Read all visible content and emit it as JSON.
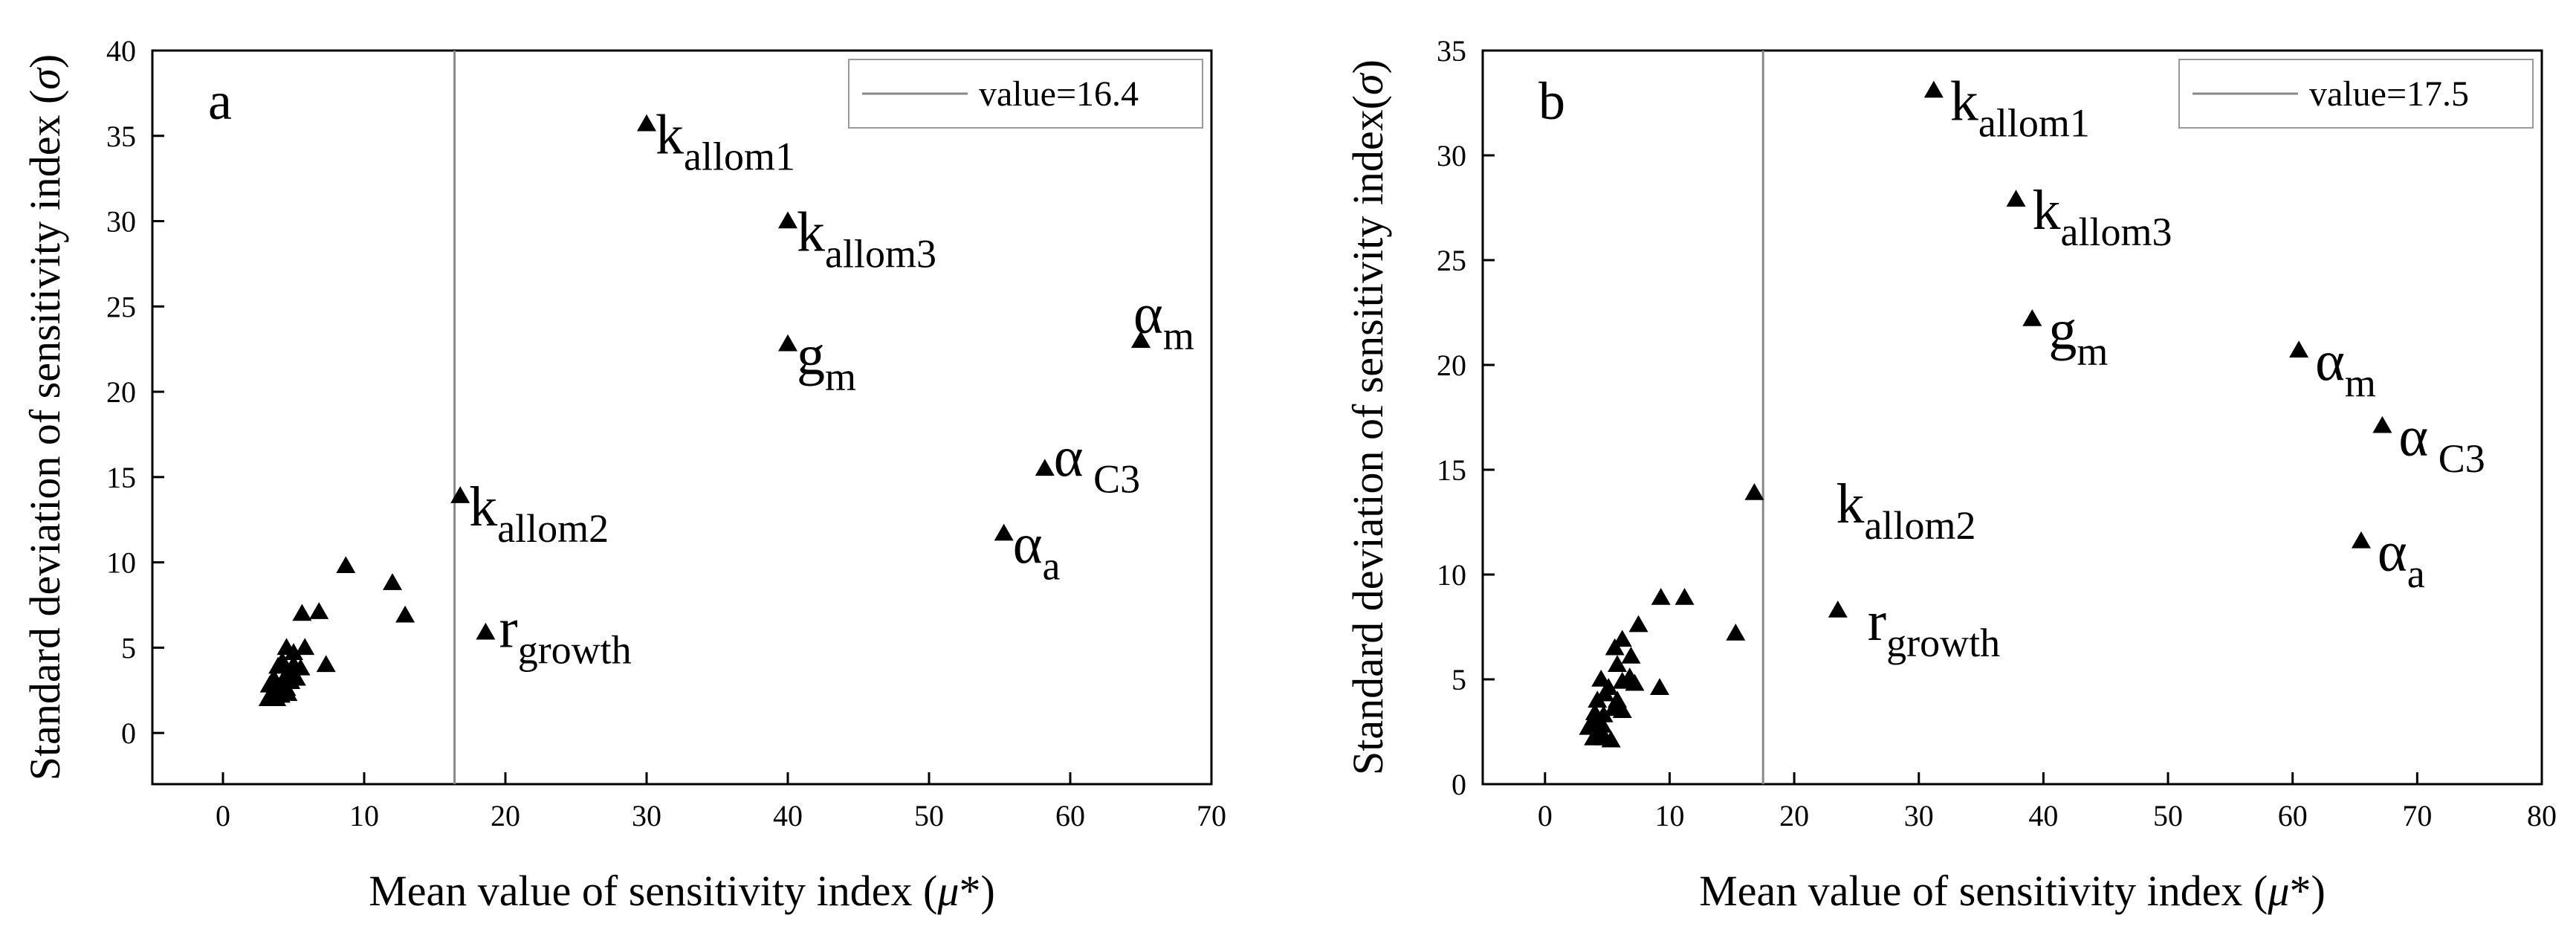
{
  "chart_data": [
    {
      "type": "scatter",
      "panel": "a",
      "xlabel": "Mean value of sensitivity index (μ*)",
      "ylabel": "Standard deviation of sensitivity index (σ)",
      "xlim": [
        -5,
        70
      ],
      "ylim": [
        -3,
        40
      ],
      "xticks": [
        "0",
        "10",
        "20",
        "30",
        "40",
        "50",
        "60",
        "70"
      ],
      "yticks": [
        "0",
        "5",
        "10",
        "15",
        "20",
        "25",
        "30",
        "35",
        "40"
      ],
      "threshold": {
        "value": 16.4,
        "legend": "value=16.4"
      },
      "labeled_points": [
        {
          "x": 30.0,
          "y": 35.7,
          "base": "k",
          "sub": "allom1"
        },
        {
          "x": 40.0,
          "y": 30.0,
          "base": "k",
          "sub": "allom3"
        },
        {
          "x": 40.0,
          "y": 22.8,
          "base": "g",
          "sub": "m"
        },
        {
          "x": 65.0,
          "y": 23.0,
          "base": "α",
          "sub": "m"
        },
        {
          "x": 58.2,
          "y": 15.5,
          "base": "α",
          "sub": " C3"
        },
        {
          "x": 55.3,
          "y": 11.7,
          "base": "α",
          "sub": "a"
        },
        {
          "x": 16.8,
          "y": 13.9,
          "base": "k",
          "sub": "allom2"
        },
        {
          "x": 18.6,
          "y": 5.9,
          "base": "r",
          "sub": "growth"
        }
      ],
      "points": [
        [
          8.7,
          9.8
        ],
        [
          12.0,
          8.8
        ],
        [
          12.9,
          6.9
        ],
        [
          5.6,
          7.0
        ],
        [
          6.8,
          7.1
        ],
        [
          7.3,
          4.0
        ],
        [
          4.5,
          5.0
        ],
        [
          5.0,
          4.7
        ],
        [
          5.8,
          5.0
        ],
        [
          4.2,
          4.2
        ],
        [
          5.0,
          4.0
        ],
        [
          5.5,
          3.8
        ],
        [
          3.9,
          3.9
        ],
        [
          4.6,
          3.5
        ],
        [
          5.2,
          3.2
        ],
        [
          3.6,
          3.2
        ],
        [
          4.2,
          3.0
        ],
        [
          4.8,
          3.0
        ],
        [
          3.3,
          2.8
        ],
        [
          3.9,
          2.6
        ],
        [
          4.5,
          2.6
        ],
        [
          3.5,
          2.2
        ],
        [
          4.1,
          2.2
        ],
        [
          3.2,
          2.0
        ],
        [
          3.8,
          2.0
        ],
        [
          4.6,
          2.3
        ]
      ]
    },
    {
      "type": "scatter",
      "panel": "b",
      "xlabel": "Mean value of sensitivity index (μ*)",
      "ylabel": "Standard deviation of  sensitivity index(σ)",
      "xlim": [
        -5,
        80
      ],
      "ylim": [
        0,
        35
      ],
      "xticks": [
        "0",
        "10",
        "20",
        "30",
        "40",
        "50",
        "60",
        "70",
        "80"
      ],
      "yticks": [
        "0",
        "5",
        "10",
        "15",
        "20",
        "25",
        "30",
        "35"
      ],
      "threshold": {
        "value": 17.5,
        "legend": "value=17.5"
      },
      "labeled_points": [
        {
          "x": 31.2,
          "y": 33.1,
          "base": "k",
          "sub": "allom1"
        },
        {
          "x": 37.8,
          "y": 27.9,
          "base": "k",
          "sub": "allom3"
        },
        {
          "x": 39.1,
          "y": 22.2,
          "base": "g",
          "sub": "m"
        },
        {
          "x": 60.5,
          "y": 20.7,
          "base": "α",
          "sub": "m"
        },
        {
          "x": 67.2,
          "y": 17.1,
          "base": "α",
          "sub": " C3"
        },
        {
          "x": 65.5,
          "y": 11.6,
          "base": "α",
          "sub": "a"
        },
        {
          "x": 16.8,
          "y": 13.9,
          "base": "k",
          "sub": "allom2"
        },
        {
          "x": 23.5,
          "y": 8.3,
          "base": "r",
          "sub": "growth"
        }
      ],
      "points": [
        [
          9.3,
          8.9
        ],
        [
          11.2,
          8.9
        ],
        [
          15.3,
          7.2
        ],
        [
          7.5,
          7.6
        ],
        [
          6.2,
          6.9
        ],
        [
          5.6,
          6.5
        ],
        [
          6.9,
          6.1
        ],
        [
          5.8,
          5.7
        ],
        [
          6.8,
          5.1
        ],
        [
          7.2,
          4.8
        ],
        [
          9.2,
          4.6
        ],
        [
          4.5,
          5.0
        ],
        [
          5.1,
          4.6
        ],
        [
          6.2,
          4.9
        ],
        [
          4.8,
          4.3
        ],
        [
          5.8,
          4.0
        ],
        [
          4.2,
          4.0
        ],
        [
          5.5,
          3.6
        ],
        [
          6.2,
          3.5
        ],
        [
          4.0,
          3.4
        ],
        [
          4.7,
          3.3
        ],
        [
          3.8,
          3.0
        ],
        [
          4.6,
          2.8
        ],
        [
          3.5,
          2.7
        ],
        [
          4.3,
          2.5
        ],
        [
          3.9,
          2.2
        ],
        [
          4.8,
          2.2
        ],
        [
          5.3,
          2.1
        ]
      ]
    }
  ]
}
